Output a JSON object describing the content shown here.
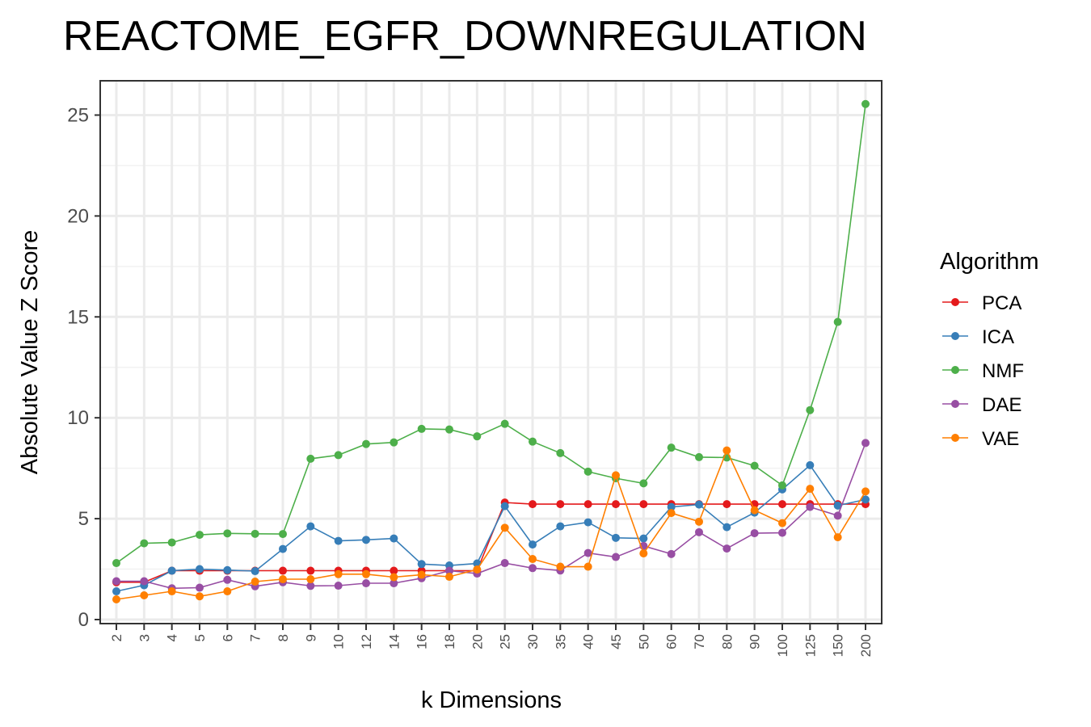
{
  "chart_data": {
    "type": "line",
    "title": "REACTOME_EGFR_DOWNREGULATION",
    "xlabel": "k Dimensions",
    "ylabel": "Absolute Value Z Score",
    "categories": [
      "2",
      "3",
      "4",
      "5",
      "6",
      "7",
      "8",
      "9",
      "10",
      "12",
      "14",
      "16",
      "18",
      "20",
      "25",
      "30",
      "35",
      "40",
      "45",
      "50",
      "60",
      "70",
      "80",
      "90",
      "100",
      "125",
      "150",
      "200"
    ],
    "y_ticks": [
      0,
      5,
      10,
      15,
      20,
      25
    ],
    "ylim": [
      -0.2,
      26.7
    ],
    "grid": true,
    "legend": {
      "title": "Algorithm",
      "position": "right"
    },
    "series": [
      {
        "name": "PCA",
        "color": "#e41a1c",
        "values": [
          1.85,
          1.85,
          2.42,
          2.42,
          2.42,
          2.42,
          2.42,
          2.42,
          2.42,
          2.42,
          2.42,
          2.42,
          2.42,
          2.42,
          5.8,
          5.72,
          5.72,
          5.72,
          5.72,
          5.72,
          5.72,
          5.72,
          5.72,
          5.72,
          5.72,
          5.72,
          5.72,
          5.72
        ]
      },
      {
        "name": "ICA",
        "color": "#377eb8",
        "values": [
          1.4,
          1.7,
          2.42,
          2.5,
          2.45,
          2.4,
          3.5,
          4.62,
          3.9,
          3.95,
          4.02,
          2.75,
          2.68,
          2.78,
          5.62,
          3.72,
          4.62,
          4.82,
          4.05,
          4.02,
          5.58,
          5.7,
          4.58,
          5.3,
          6.45,
          7.65,
          5.65,
          5.95
        ]
      },
      {
        "name": "NMF",
        "color": "#4daf4a",
        "values": [
          2.8,
          3.78,
          3.82,
          4.2,
          4.27,
          4.25,
          4.24,
          7.97,
          8.15,
          8.7,
          8.78,
          9.45,
          9.42,
          9.08,
          9.7,
          8.82,
          8.25,
          7.33,
          7.0,
          6.75,
          8.52,
          8.05,
          8.03,
          7.62,
          6.65,
          10.38,
          14.75,
          25.55
        ]
      },
      {
        "name": "DAE",
        "color": "#984ea3",
        "values": [
          1.9,
          1.9,
          1.55,
          1.58,
          1.97,
          1.65,
          1.85,
          1.67,
          1.68,
          1.8,
          1.8,
          2.05,
          2.42,
          2.28,
          2.8,
          2.55,
          2.43,
          3.3,
          3.1,
          3.65,
          3.25,
          4.33,
          3.52,
          4.28,
          4.3,
          5.58,
          5.15,
          8.75
        ]
      },
      {
        "name": "VAE",
        "color": "#ff7f00",
        "values": [
          1.0,
          1.2,
          1.4,
          1.15,
          1.4,
          1.88,
          2.0,
          2.0,
          2.25,
          2.25,
          2.1,
          2.22,
          2.12,
          2.48,
          4.55,
          3.0,
          2.62,
          2.62,
          7.15,
          3.28,
          5.28,
          4.85,
          8.38,
          5.42,
          4.78,
          6.48,
          4.08,
          6.35
        ]
      }
    ]
  }
}
